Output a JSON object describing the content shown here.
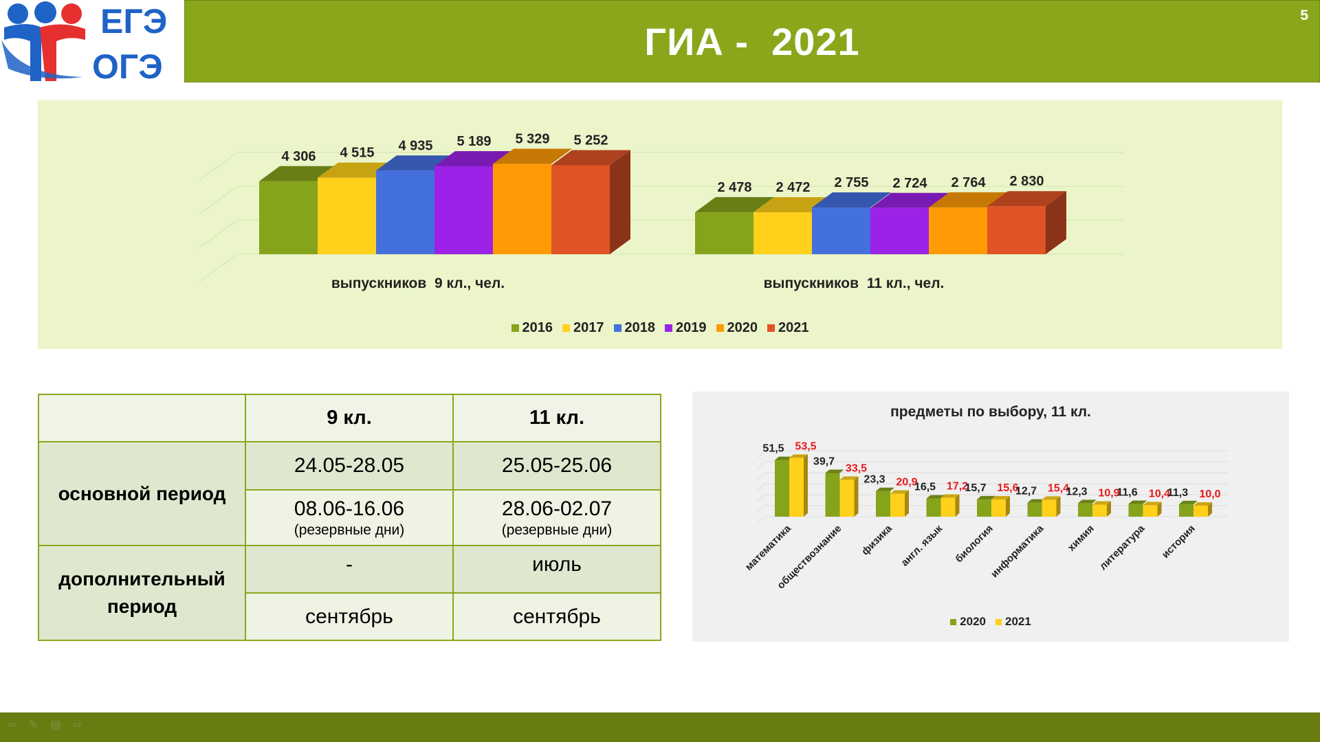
{
  "logo": {
    "line1": "ЕГЭ",
    "line2": "ОГЭ"
  },
  "header": {
    "title": "ГИА -  2021",
    "slide_number": "5"
  },
  "top_chart": {
    "legend": [
      "2016",
      "2017",
      "2018",
      "2019",
      "2020",
      "2021"
    ]
  },
  "schedule": {
    "col1": "9 кл.",
    "col2": "11 кл.",
    "main_label": "основной период",
    "main_r1_c1": "24.05-28.05",
    "main_r1_c2": "25.05-25.06",
    "main_r2_c1": "08.06-16.06",
    "main_r2_c2": "28.06-02.07",
    "reserve_note": "(резервные дни)",
    "extra_label": "дополнительный период",
    "extra_r1_c1": "-",
    "extra_r1_c2": "июль",
    "extra_r2_c1": "сентябрь",
    "extra_r2_c2": "сентябрь"
  },
  "subjects_chart": {
    "legend": [
      "2020",
      "2021"
    ]
  },
  "colors": {
    "header_green": "#8aa71c",
    "footer_green": "#677d12",
    "y2016": "#86a31c",
    "y2017": "#ffd11a",
    "y2018": "#4470de",
    "y2019": "#9b22e6",
    "y2020": "#ff9a05",
    "y2021": "#e05327",
    "red_label": "#e8191c"
  },
  "chart_data": [
    {
      "type": "bar",
      "title": "",
      "categories": [
        "выпускников  9 кл., чел.",
        "выпускников  11 кл., чел."
      ],
      "series": [
        {
          "name": "2016",
          "values": [
            4306,
            2478
          ],
          "labels": [
            "4 306",
            "2 478"
          ]
        },
        {
          "name": "2017",
          "values": [
            4515,
            2472
          ],
          "labels": [
            "4 515",
            "2 472"
          ]
        },
        {
          "name": "2018",
          "values": [
            4935,
            2755
          ],
          "labels": [
            "4 935",
            "2 755"
          ]
        },
        {
          "name": "2019",
          "values": [
            5189,
            2724
          ],
          "labels": [
            "5 189",
            "2 724"
          ]
        },
        {
          "name": "2020",
          "values": [
            5329,
            2764
          ],
          "labels": [
            "5 329",
            "2 764"
          ]
        },
        {
          "name": "2021",
          "values": [
            5252,
            2830
          ],
          "labels": [
            "5 252",
            "2 830"
          ]
        }
      ],
      "ylim": [
        0,
        6000
      ],
      "legend_position": "bottom"
    },
    {
      "type": "bar",
      "title": "предметы по выбору, 11 кл.",
      "categories": [
        "математика",
        "обществознание",
        "физика",
        "англ. язык",
        "биология",
        "информатика",
        "химия",
        "литература",
        "история"
      ],
      "series": [
        {
          "name": "2020",
          "values": [
            51.5,
            39.7,
            23.3,
            16.5,
            15.7,
            12.7,
            12.3,
            11.6,
            11.3
          ],
          "labels": [
            "51,5",
            "39,7",
            "23,3",
            "16,5",
            "15,7",
            "12,7",
            "12,3",
            "11,6",
            "11,3"
          ]
        },
        {
          "name": "2021",
          "values": [
            53.5,
            33.5,
            20.9,
            17.2,
            15.6,
            15.4,
            10.9,
            10.4,
            10.0
          ],
          "labels": [
            "53,5",
            "33,5",
            "20,9",
            "17,2",
            "15,6",
            "15,4",
            "10,9",
            "10,4",
            "10,0"
          ]
        }
      ],
      "ylim": [
        0,
        60
      ],
      "legend_position": "bottom"
    }
  ]
}
